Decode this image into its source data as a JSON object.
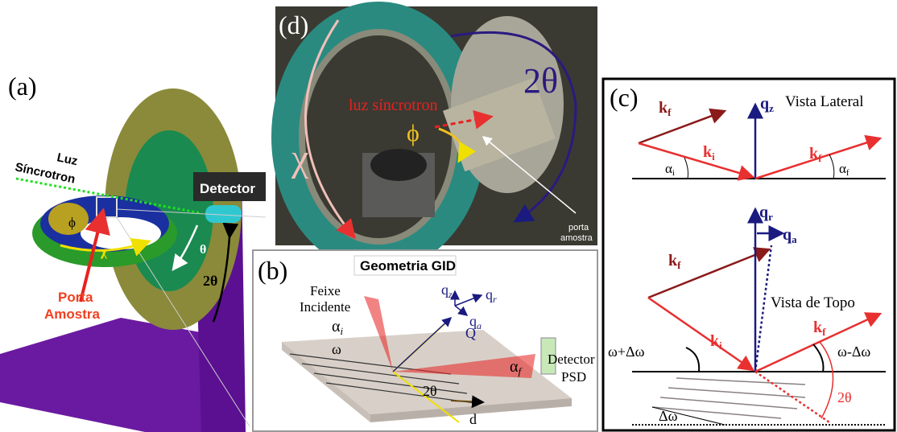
{
  "panel_a": {
    "label": "(a)",
    "source_label": [
      "Luz",
      "Síncrotron"
    ],
    "detector": "Detector",
    "sample_label": [
      "Porta",
      "Amostra"
    ],
    "phi": "ϕ",
    "chi": "χ",
    "theta": "θ",
    "two_theta": "2θ"
  },
  "panel_d": {
    "label": "(d)",
    "chi": "χ",
    "beam": "luz síncrotron",
    "phi": "ϕ",
    "two_theta": "2θ",
    "sample": [
      "porta",
      "amostra"
    ]
  },
  "panel_b": {
    "label": "(b)",
    "title": "Geometria GID",
    "beam": [
      "Feixe",
      "Incidente"
    ],
    "alpha_i": {
      "main": "α",
      "sub": "i"
    },
    "omega": "ω",
    "two_theta": "2θ",
    "q": "Q",
    "q_z": {
      "main": "q",
      "sub": "z"
    },
    "q_r": {
      "main": "q",
      "sub": "r"
    },
    "q_a": {
      "main": "q",
      "sub": "a"
    },
    "alpha_f": {
      "main": "α",
      "sub": "f"
    },
    "detector": [
      "Detector",
      "PSD"
    ],
    "d": "d"
  },
  "panel_c": {
    "label": "(c)",
    "side_view": {
      "title": "Vista Lateral",
      "k_f_in": {
        "main": "k",
        "sub": "f"
      },
      "q_z": {
        "main": "q",
        "sub": "z"
      },
      "k_i": {
        "main": "k",
        "sub": "i"
      },
      "k_f_out": {
        "main": "k",
        "sub": "f"
      },
      "alpha_i": {
        "main": "α",
        "sub": "i"
      },
      "alpha_f": {
        "main": "α",
        "sub": "f"
      }
    },
    "top_view": {
      "title": "Vista de Topo",
      "q_r": {
        "main": "q",
        "sub": "r"
      },
      "q_a": {
        "main": "q",
        "sub": "a"
      },
      "k_f_in": {
        "main": "k",
        "sub": "f"
      },
      "k_i": {
        "main": "k",
        "sub": "i"
      },
      "k_f_out": {
        "main": "k",
        "sub": "f"
      },
      "omega_plus": "ω+Δω",
      "omega_minus": "ω-Δω",
      "two_theta": "2θ",
      "delta_omega": "Δω"
    }
  }
}
